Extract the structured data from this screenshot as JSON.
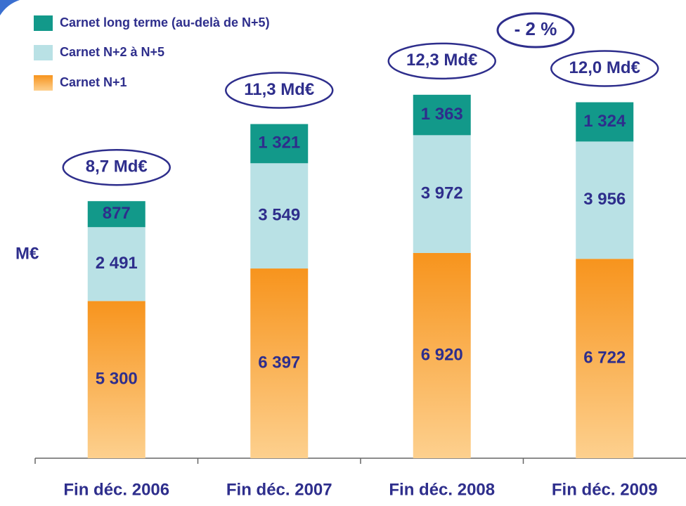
{
  "chart_data": {
    "type": "stacked_bar",
    "y_label": "M€",
    "categories": [
      "Fin déc. 2006",
      "Fin déc. 2007",
      "Fin déc. 2008",
      "Fin déc. 2009"
    ],
    "series": [
      {
        "name": "Carnet N+1",
        "color": "#f7941d",
        "values": [
          5300,
          6397,
          6920,
          6722
        ],
        "value_labels": [
          "5 300",
          "6 397",
          "6 920",
          "6 722"
        ]
      },
      {
        "name": "Carnet N+2 à N+5",
        "color": "#b9e1e5",
        "values": [
          2491,
          3549,
          3972,
          3956
        ],
        "value_labels": [
          "2 491",
          "3 549",
          "3 972",
          "3 956"
        ]
      },
      {
        "name": "Carnet long terme (au-delà de N+5)",
        "color": "#12998a",
        "values": [
          877,
          1321,
          1363,
          1324
        ],
        "value_labels": [
          "877",
          "1 321",
          "1 363",
          "1 324"
        ]
      }
    ],
    "totals": [
      "8,7 Md€",
      "11,3 Md€",
      "12,3 Md€",
      "12,0 Md€"
    ],
    "change_label": "- 2 %",
    "ylim": [
      0,
      15450
    ]
  }
}
